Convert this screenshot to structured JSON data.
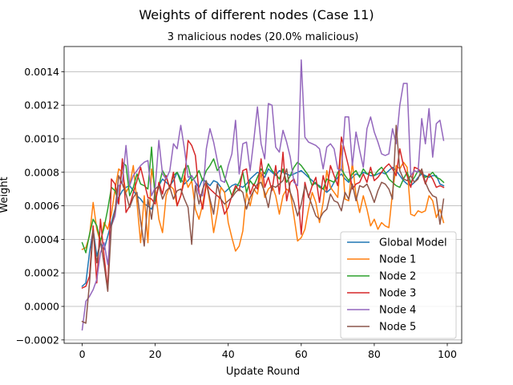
{
  "chart_data": {
    "type": "line",
    "title": "Weights of different nodes (Case 11)",
    "subtitle": "3 malicious nodes (20.0% malicious)",
    "xlabel": "Update Round",
    "ylabel": "Weight",
    "xlim": [
      -4.95,
      103.95
    ],
    "ylim": [
      -0.00022,
      0.00155
    ],
    "xticks": [
      0,
      20,
      40,
      60,
      80,
      100
    ],
    "yticks": [
      -0.0002,
      0.0,
      0.0002,
      0.0004,
      0.0006,
      0.0008,
      0.001,
      0.0012,
      0.0014
    ],
    "ytick_labels": [
      "−0.0002",
      "0.0000",
      "0.0002",
      "0.0004",
      "0.0006",
      "0.0008",
      "0.0010",
      "0.0012",
      "0.0014"
    ],
    "grid": "horizontal",
    "legend_position": "lower-right",
    "x": [
      0,
      1,
      2,
      3,
      4,
      5,
      6,
      7,
      8,
      9,
      10,
      11,
      12,
      13,
      14,
      15,
      16,
      17,
      18,
      19,
      20,
      21,
      22,
      23,
      24,
      25,
      26,
      27,
      28,
      29,
      30,
      31,
      32,
      33,
      34,
      35,
      36,
      37,
      38,
      39,
      40,
      41,
      42,
      43,
      44,
      45,
      46,
      47,
      48,
      49,
      50,
      51,
      52,
      53,
      54,
      55,
      56,
      57,
      58,
      59,
      60,
      61,
      62,
      63,
      64,
      65,
      66,
      67,
      68,
      69,
      70,
      71,
      72,
      73,
      74,
      75,
      76,
      77,
      78,
      79,
      80,
      81,
      82,
      83,
      84,
      85,
      86,
      87,
      88,
      89,
      90,
      91,
      92,
      93,
      94,
      95,
      96,
      97,
      98,
      99
    ],
    "series": [
      {
        "name": "Global Model",
        "color": "#1f77b4",
        "values": [
          0.00012,
          0.00014,
          0.00032,
          0.00046,
          0.0003,
          0.00038,
          0.00034,
          0.00042,
          0.0005,
          0.00058,
          0.00065,
          0.00069,
          0.00071,
          0.00072,
          0.00069,
          0.00066,
          0.00064,
          0.00061,
          0.0006,
          0.00058,
          0.00064,
          0.00072,
          0.00076,
          0.00074,
          0.00072,
          0.00075,
          0.0008,
          0.00076,
          0.00073,
          0.00075,
          0.00078,
          0.00074,
          0.00071,
          0.00076,
          0.00074,
          0.00072,
          0.00075,
          0.00074,
          0.00071,
          0.00068,
          0.0007,
          0.00072,
          0.00073,
          0.00072,
          0.00071,
          0.00073,
          0.00076,
          0.00078,
          0.0008,
          0.00079,
          0.00077,
          0.00082,
          0.0008,
          0.00078,
          0.00081,
          0.0008,
          0.00079,
          0.00078,
          0.00079,
          0.0008,
          0.00081,
          0.00079,
          0.00077,
          0.00075,
          0.00073,
          0.00072,
          0.0007,
          0.00068,
          0.0007,
          0.00074,
          0.00077,
          0.00079,
          0.00076,
          0.00074,
          0.00077,
          0.00079,
          0.00078,
          0.0008,
          0.00079,
          0.00078,
          0.00078,
          0.00079,
          0.0008,
          0.00079,
          0.00081,
          0.00083,
          0.00081,
          0.00078,
          0.00075,
          0.00073,
          0.00072,
          0.00074,
          0.00077,
          0.00079,
          0.00078,
          0.00077,
          0.00078,
          0.00078,
          0.00073,
          0.00072
        ]
      },
      {
        "name": "Node 1",
        "color": "#ff7f0e",
        "values": [
          0.00034,
          0.00035,
          0.00042,
          0.00062,
          0.00046,
          0.00038,
          0.0005,
          0.00046,
          0.00055,
          0.0007,
          0.00082,
          0.0008,
          0.00068,
          0.00072,
          0.00084,
          0.00062,
          0.00038,
          0.00066,
          0.00038,
          0.00082,
          0.0007,
          0.00052,
          0.00044,
          0.00066,
          0.00072,
          0.0007,
          0.0006,
          0.00066,
          0.00078,
          0.00071,
          0.00075,
          0.00058,
          0.00052,
          0.00061,
          0.00074,
          0.00062,
          0.00044,
          0.00056,
          0.00071,
          0.00068,
          0.0005,
          0.00041,
          0.00033,
          0.00036,
          0.00045,
          0.00068,
          0.0006,
          0.0007,
          0.00067,
          0.0008,
          0.00065,
          0.0007,
          0.00072,
          0.00066,
          0.00055,
          0.00066,
          0.0007,
          0.00068,
          0.00054,
          0.00039,
          0.00041,
          0.00046,
          0.00058,
          0.00068,
          0.00062,
          0.0005,
          0.00062,
          0.00081,
          0.00071,
          0.00068,
          0.00065,
          0.00096,
          0.00064,
          0.00063,
          0.00086,
          0.00066,
          0.00056,
          0.00066,
          0.00058,
          0.00048,
          0.00052,
          0.00046,
          0.0005,
          0.00048,
          0.00047,
          0.00068,
          0.00084,
          0.00082,
          0.00086,
          0.00083,
          0.00055,
          0.00054,
          0.00057,
          0.00056,
          0.00057,
          0.00066,
          0.00063,
          0.00053,
          0.00058,
          0.0005
        ]
      },
      {
        "name": "Node 2",
        "color": "#2ca02c",
        "values": [
          0.00038,
          0.00032,
          0.00043,
          0.00052,
          0.00048,
          0.00039,
          0.00047,
          0.00058,
          0.00071,
          0.00069,
          0.00062,
          0.00086,
          0.00084,
          0.00066,
          0.00071,
          0.00079,
          0.00073,
          0.00072,
          0.0007,
          0.00095,
          0.00063,
          0.00072,
          0.00081,
          0.00077,
          0.00071,
          0.00078,
          0.0008,
          0.00074,
          0.00082,
          0.00084,
          0.00075,
          0.00077,
          0.00081,
          0.00075,
          0.00081,
          0.00084,
          0.00088,
          0.00081,
          0.00084,
          0.00077,
          0.00072,
          0.00066,
          0.0007,
          0.00074,
          0.0008,
          0.00068,
          0.00075,
          0.00072,
          0.00077,
          0.00082,
          0.00079,
          0.00085,
          0.00081,
          0.00079,
          0.00076,
          0.00082,
          0.00074,
          0.00078,
          0.00083,
          0.00086,
          0.00084,
          0.00081,
          0.00078,
          0.00072,
          0.00074,
          0.00071,
          0.0007,
          0.00076,
          0.00075,
          0.00074,
          0.0008,
          0.00082,
          0.00078,
          0.00075,
          0.00079,
          0.00081,
          0.00077,
          0.00082,
          0.00079,
          0.0008,
          0.00078,
          0.00081,
          0.00083,
          0.0008,
          0.00076,
          0.00074,
          0.00072,
          0.00071,
          0.00076,
          0.0008,
          0.00074,
          0.00077,
          0.00081,
          0.00079,
          0.00077,
          0.00078,
          0.0008,
          0.00077,
          0.00076,
          0.00074
        ]
      },
      {
        "name": "Node 3",
        "color": "#d62728",
        "values": [
          0.00011,
          0.00012,
          0.00018,
          0.00048,
          0.00014,
          0.00052,
          0.0003,
          0.0001,
          0.00076,
          0.00073,
          0.00061,
          0.00088,
          0.00056,
          0.0006,
          0.00068,
          0.00075,
          0.00083,
          0.00074,
          0.00065,
          0.00064,
          0.00061,
          0.00074,
          0.00067,
          0.00078,
          0.0007,
          0.0008,
          0.0006,
          0.00066,
          0.00075,
          0.00099,
          0.00096,
          0.0009,
          0.00068,
          0.00058,
          0.00073,
          0.0007,
          0.00068,
          0.00066,
          0.00064,
          0.00055,
          0.00059,
          0.00066,
          0.00072,
          0.00069,
          0.00081,
          0.00082,
          0.00067,
          0.00073,
          0.0007,
          0.00088,
          0.00071,
          0.00077,
          0.00069,
          0.00084,
          0.00067,
          0.00092,
          0.00063,
          0.00074,
          0.00076,
          0.00069,
          0.00043,
          0.00074,
          0.00065,
          0.00072,
          0.00077,
          0.00062,
          0.00078,
          0.00069,
          0.00084,
          0.00078,
          0.00072,
          0.00101,
          0.00092,
          0.00083,
          0.0007,
          0.00073,
          0.00074,
          0.00079,
          0.00074,
          0.00083,
          0.00075,
          0.00077,
          0.0008,
          0.00083,
          0.00085,
          0.00082,
          0.00078,
          0.00094,
          0.00084,
          0.00078,
          0.00071,
          0.00083,
          0.00082,
          0.0008,
          0.00073,
          0.00079,
          0.00076,
          0.00071,
          0.00072,
          0.00071
        ]
      },
      {
        "name": "Node 4",
        "color": "#9467bd",
        "values": [
          -0.00014,
          3e-05,
          6e-05,
          0.0001,
          0.00016,
          0.00032,
          0.00038,
          0.00025,
          0.00048,
          0.00054,
          0.00072,
          0.00074,
          0.00096,
          0.00072,
          0.00078,
          0.00081,
          0.00084,
          0.00086,
          0.00087,
          0.00066,
          0.00071,
          0.00099,
          0.00079,
          0.00076,
          0.00081,
          0.00097,
          0.00094,
          0.00108,
          0.00094,
          0.00077,
          0.00078,
          0.00074,
          0.00067,
          0.00066,
          0.00094,
          0.00106,
          0.00098,
          0.00087,
          0.00075,
          0.00074,
          0.00084,
          0.00091,
          0.00111,
          0.00079,
          0.00097,
          0.00098,
          0.00081,
          0.00099,
          0.00119,
          0.00097,
          0.00088,
          0.00121,
          0.0012,
          0.00095,
          0.00092,
          0.00105,
          0.00098,
          0.00089,
          0.00074,
          0.00072,
          0.00147,
          0.00101,
          0.00098,
          0.00097,
          0.00096,
          0.00094,
          0.00082,
          0.00095,
          0.00097,
          0.00094,
          0.00082,
          0.00081,
          0.00113,
          0.00113,
          0.00084,
          0.00104,
          0.00093,
          0.00083,
          0.00106,
          0.00113,
          0.00104,
          0.00098,
          0.00091,
          0.0009,
          0.00091,
          0.00106,
          0.00097,
          0.0012,
          0.00133,
          0.00133,
          0.00078,
          0.00081,
          0.0008,
          0.00112,
          0.00097,
          0.00118,
          0.00089,
          0.00109,
          0.00111,
          0.00099
        ]
      },
      {
        "name": "Node 5",
        "color": "#8c564b",
        "values": [
          -9e-05,
          -0.0001,
          0.00014,
          0.00045,
          0.00026,
          0.00039,
          0.00025,
          9e-05,
          0.00048,
          0.00057,
          0.00078,
          0.00073,
          0.00067,
          0.00059,
          0.00065,
          0.00068,
          0.00051,
          0.00036,
          0.00064,
          0.00052,
          0.0007,
          0.00072,
          0.00064,
          0.00069,
          0.00071,
          0.00064,
          0.00069,
          0.0007,
          0.00064,
          0.00059,
          0.00037,
          0.00072,
          0.00061,
          0.0007,
          0.00075,
          0.00064,
          0.00055,
          0.00073,
          0.00064,
          0.00061,
          0.00063,
          0.00065,
          0.00068,
          0.0007,
          0.00068,
          0.00058,
          0.00065,
          0.00069,
          0.00073,
          0.00074,
          0.00068,
          0.00059,
          0.00072,
          0.00071,
          0.00073,
          0.00075,
          0.00082,
          0.00068,
          0.00062,
          0.00054,
          0.00061,
          0.00072,
          0.00066,
          0.0006,
          0.00054,
          0.00052,
          0.00056,
          0.00058,
          0.00067,
          0.00063,
          0.00062,
          0.00057,
          0.00068,
          0.00064,
          0.00073,
          0.00063,
          0.00072,
          0.00071,
          0.00073,
          0.00068,
          0.00062,
          0.00069,
          0.00074,
          0.00073,
          0.0007,
          0.00064,
          0.00108,
          0.00081,
          0.00076,
          0.00075,
          0.00078,
          0.00074,
          0.00076,
          0.00082,
          0.00074,
          0.00069,
          0.00066,
          0.00065,
          0.00049,
          0.00064
        ]
      }
    ]
  }
}
